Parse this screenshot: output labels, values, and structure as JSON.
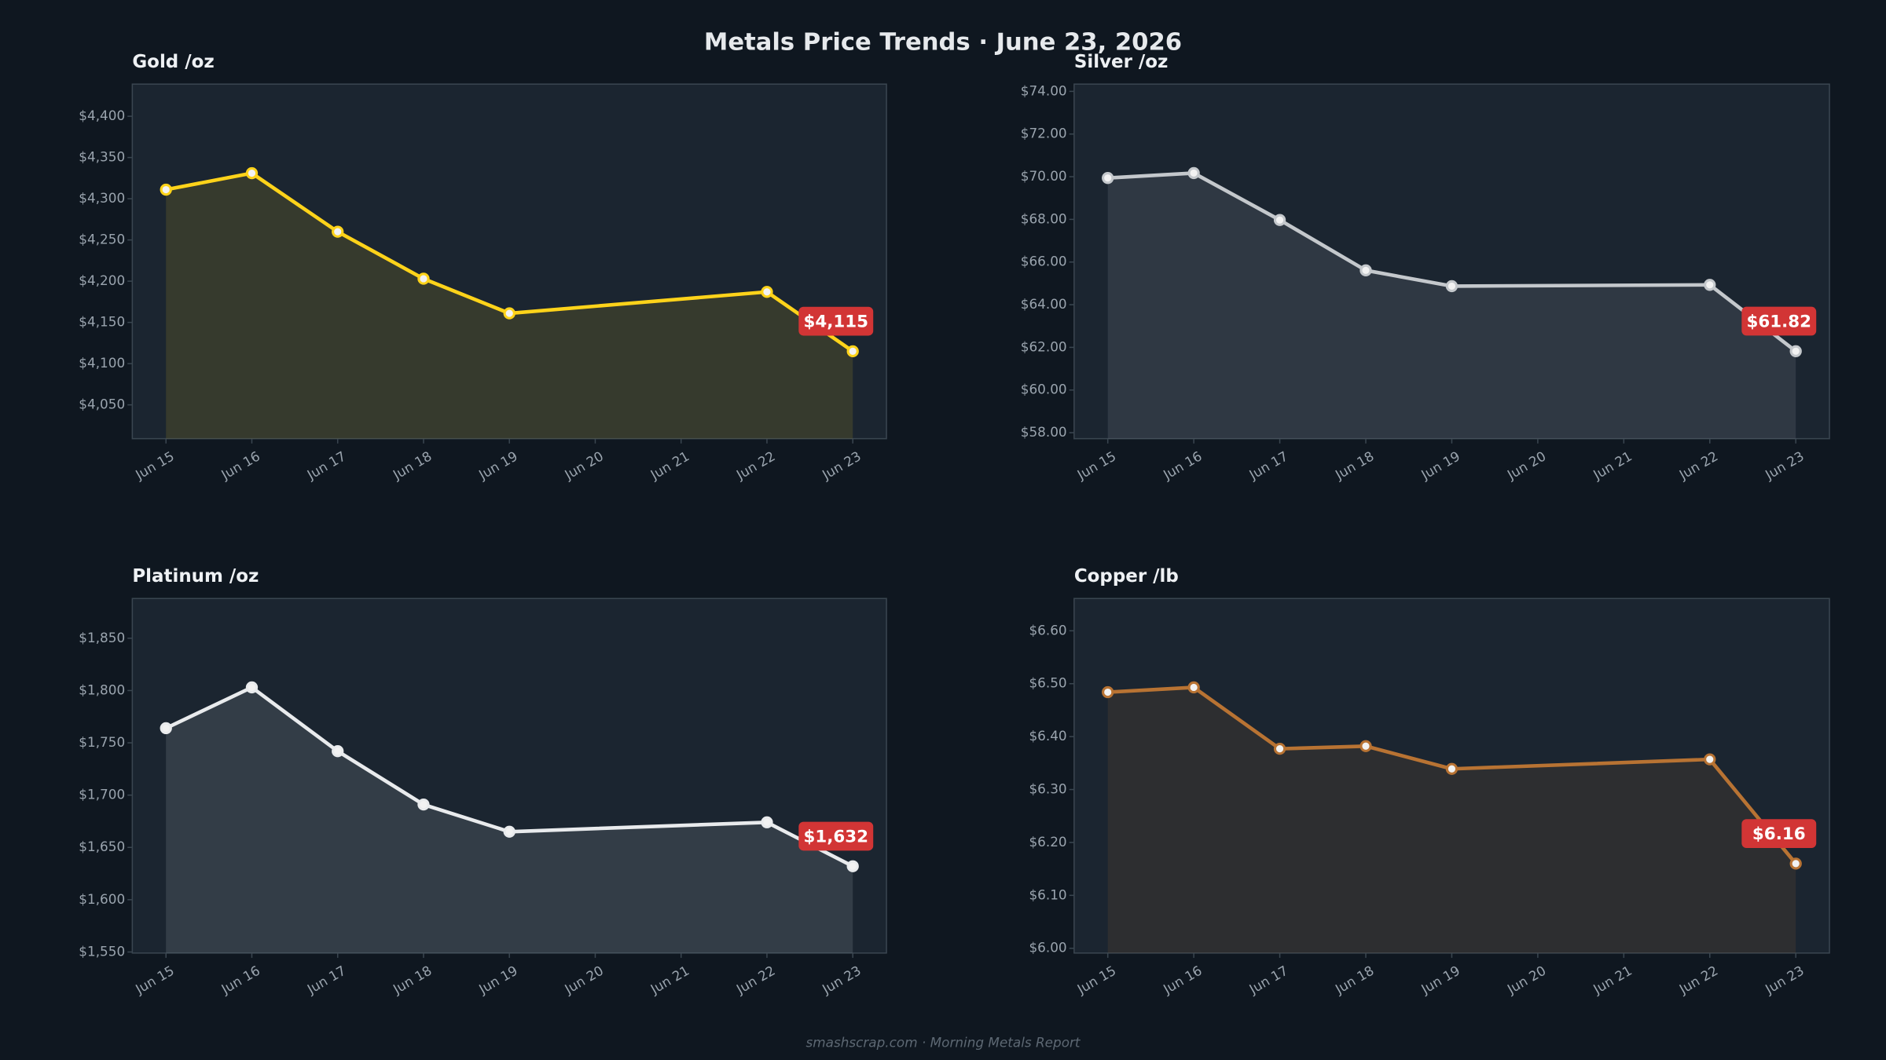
{
  "title": "Metals Price Trends  ·  June 23, 2026",
  "footer": "smashscrap.com  ·  Morning Metals Report",
  "chart_data": [
    {
      "type": "line",
      "title": "Gold  /oz",
      "color": "#ffd31a",
      "x": [
        "Jun 15",
        "Jun 16",
        "Jun 17",
        "Jun 18",
        "Jun 19",
        "Jun 22",
        "Jun 23"
      ],
      "values": [
        4311,
        4331,
        4260,
        4203,
        4161,
        4187,
        4115
      ],
      "value_labels": [
        null,
        null,
        null,
        null,
        null,
        null,
        "$4,115"
      ],
      "xticks": [
        "Jun 15",
        "Jun 16",
        "Jun 17",
        "Jun 18",
        "Jun 19",
        "Jun 20",
        "Jun 21",
        "Jun 22",
        "Jun 23"
      ],
      "ylim": [
        4009,
        4439
      ],
      "yticks": [
        {
          "value": 4050,
          "label": "$4,050"
        },
        {
          "value": 4100,
          "label": "$4,100"
        },
        {
          "value": 4150,
          "label": "$4,150"
        },
        {
          "value": 4200,
          "label": "$4,200"
        },
        {
          "value": 4250,
          "label": "$4,250"
        },
        {
          "value": 4300,
          "label": "$4,300"
        },
        {
          "value": 4350,
          "label": "$4,350"
        },
        {
          "value": 4400,
          "label": "$4,400"
        }
      ]
    },
    {
      "type": "line",
      "title": "Silver  /oz",
      "color": "#c4c8cc",
      "x": [
        "Jun 15",
        "Jun 16",
        "Jun 17",
        "Jun 18",
        "Jun 19",
        "Jun 22",
        "Jun 23"
      ],
      "values": [
        69.94,
        70.17,
        67.97,
        65.61,
        64.87,
        64.93,
        61.82
      ],
      "value_labels": [
        null,
        null,
        null,
        null,
        null,
        null,
        "$61.82"
      ],
      "xticks": [
        "Jun 15",
        "Jun 16",
        "Jun 17",
        "Jun 18",
        "Jun 19",
        "Jun 20",
        "Jun 21",
        "Jun 22",
        "Jun 23"
      ],
      "ylim": [
        57.72,
        74.34
      ],
      "yticks": [
        {
          "value": 58,
          "label": "$58.00"
        },
        {
          "value": 60,
          "label": "$60.00"
        },
        {
          "value": 62,
          "label": "$62.00"
        },
        {
          "value": 64,
          "label": "$64.00"
        },
        {
          "value": 66,
          "label": "$66.00"
        },
        {
          "value": 68,
          "label": "$68.00"
        },
        {
          "value": 70,
          "label": "$70.00"
        },
        {
          "value": 72,
          "label": "$72.00"
        },
        {
          "value": 74,
          "label": "$74.00"
        }
      ]
    },
    {
      "type": "line",
      "title": "Platinum  /oz",
      "color": "#e9ebed",
      "x": [
        "Jun 15",
        "Jun 16",
        "Jun 17",
        "Jun 18",
        "Jun 19",
        "Jun 22",
        "Jun 23"
      ],
      "values": [
        1764,
        1803,
        1742,
        1691,
        1665,
        1674,
        1632
      ],
      "value_labels": [
        null,
        null,
        null,
        null,
        null,
        null,
        "$1,632"
      ],
      "xticks": [
        "Jun 15",
        "Jun 16",
        "Jun 17",
        "Jun 18",
        "Jun 19",
        "Jun 20",
        "Jun 21",
        "Jun 22",
        "Jun 23"
      ],
      "ylim": [
        1549,
        1888
      ],
      "yticks": [
        {
          "value": 1550,
          "label": "$1,550"
        },
        {
          "value": 1600,
          "label": "$1,600"
        },
        {
          "value": 1650,
          "label": "$1,650"
        },
        {
          "value": 1700,
          "label": "$1,700"
        },
        {
          "value": 1750,
          "label": "$1,750"
        },
        {
          "value": 1800,
          "label": "$1,800"
        },
        {
          "value": 1850,
          "label": "$1,850"
        }
      ]
    },
    {
      "type": "line",
      "title": "Copper  /lb",
      "color": "#b87333",
      "x": [
        "Jun 15",
        "Jun 16",
        "Jun 17",
        "Jun 18",
        "Jun 19",
        "Jun 22",
        "Jun 23"
      ],
      "values": [
        6.484,
        6.493,
        6.377,
        6.382,
        6.339,
        6.357,
        6.16
      ],
      "value_labels": [
        null,
        null,
        null,
        null,
        null,
        null,
        "$6.16"
      ],
      "xticks": [
        "Jun 15",
        "Jun 16",
        "Jun 17",
        "Jun 18",
        "Jun 19",
        "Jun 20",
        "Jun 21",
        "Jun 22",
        "Jun 23"
      ],
      "ylim": [
        5.991,
        6.661
      ],
      "yticks": [
        {
          "value": 6.0,
          "label": "$6.00"
        },
        {
          "value": 6.1,
          "label": "$6.10"
        },
        {
          "value": 6.2,
          "label": "$6.20"
        },
        {
          "value": 6.3,
          "label": "$6.30"
        },
        {
          "value": 6.4,
          "label": "$6.40"
        },
        {
          "value": 6.5,
          "label": "$6.50"
        },
        {
          "value": 6.6,
          "label": "$6.60"
        }
      ]
    }
  ]
}
